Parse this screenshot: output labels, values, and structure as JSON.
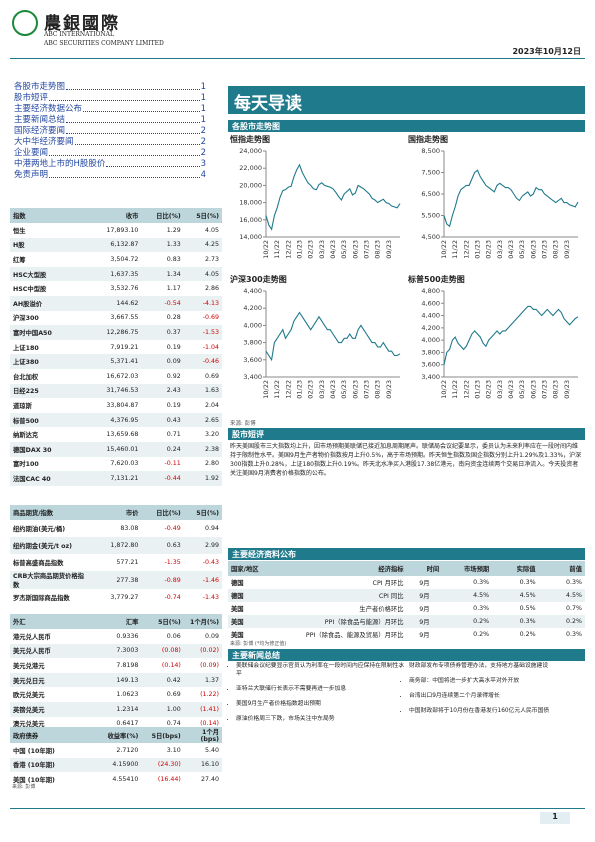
{
  "header": {
    "logo": "農銀國際",
    "company_en1": "ABC INTERNATIONAL",
    "company_en2": "ABC SECURITIES COMPANY LIMITED",
    "date": "2023年10月12日"
  },
  "toc": [
    {
      "title": "各股市走势图",
      "page": "1"
    },
    {
      "title": "股市短评",
      "page": "1"
    },
    {
      "title": "主要经济数据公布",
      "page": "1"
    },
    {
      "title": "主要新闻总结",
      "page": "1"
    },
    {
      "title": "国际经济要闻",
      "page": "2"
    },
    {
      "title": "大中华经济要闻",
      "page": "2"
    },
    {
      "title": "企业要闻",
      "page": "2"
    },
    {
      "title": "中港两地上市的H股股价",
      "page": "3"
    },
    {
      "title": "免责声明",
      "page": "4"
    }
  ],
  "title": "每天导读",
  "market_charts": {
    "heading": "各股市走势图",
    "source": "来源: 彭博",
    "charts": [
      {
        "type": "line",
        "title": "恒指走势图",
        "categories": [
          "10/22",
          null,
          null,
          null,
          "11/22",
          null,
          null,
          null,
          "12/22",
          null,
          null,
          null,
          "01/23",
          null,
          null,
          null,
          "02/23",
          null,
          null,
          null,
          "03/23",
          null,
          null,
          null,
          "04/23",
          null,
          null,
          null,
          "05/23",
          null,
          null,
          null,
          "06/23",
          null,
          null,
          null,
          "07/23",
          null,
          null,
          null,
          "08/23",
          null,
          null,
          null,
          "09/23",
          null,
          null,
          null,
          null
        ],
        "values": [
          16500,
          15400,
          14900,
          16500,
          17400,
          18600,
          19400,
          19500,
          19800,
          19900,
          21000,
          21800,
          22400,
          21500,
          20900,
          20300,
          20000,
          19600,
          19500,
          20100,
          20300,
          20000,
          19900,
          19800,
          19600,
          19200,
          18700,
          18300,
          19000,
          19300,
          19600,
          18900,
          19100,
          20000,
          19800,
          19600,
          19300,
          19000,
          18500,
          18300,
          18000,
          18200,
          18400,
          18000,
          17900,
          17600,
          17500,
          17400,
          17900
        ],
        "color": "#1f7a8c",
        "ylim": [
          14000,
          24000
        ],
        "yticks": [
          {
            "value": 14000,
            "label": "14,000"
          },
          {
            "value": 16000,
            "label": "16,000"
          },
          {
            "value": 18000,
            "label": "18,000"
          },
          {
            "value": 20000,
            "label": "20,000"
          },
          {
            "value": 22000,
            "label": "22,000"
          },
          {
            "value": 24000,
            "label": "24,000"
          }
        ]
      },
      {
        "type": "line",
        "title": "国指走势图",
        "categories": [
          "10/22",
          null,
          null,
          null,
          "11/22",
          null,
          null,
          null,
          "12/22",
          null,
          null,
          null,
          "01/23",
          null,
          null,
          null,
          "02/23",
          null,
          null,
          null,
          "03/23",
          null,
          null,
          null,
          "04/23",
          null,
          null,
          null,
          "05/23",
          null,
          null,
          null,
          "06/23",
          null,
          null,
          null,
          "07/23",
          null,
          null,
          null,
          "08/23",
          null,
          null,
          null,
          "09/23",
          null,
          null,
          null,
          null
        ],
        "values": [
          5500,
          5100,
          5000,
          5500,
          5900,
          6400,
          6700,
          6800,
          6900,
          6900,
          7200,
          7500,
          7600,
          7300,
          7100,
          6900,
          6800,
          6700,
          6600,
          6900,
          7000,
          6900,
          6800,
          6800,
          6700,
          6500,
          6300,
          6200,
          6400,
          6500,
          6600,
          6400,
          6500,
          6800,
          6700,
          6700,
          6500,
          6400,
          6300,
          6200,
          6100,
          6200,
          6300,
          6100,
          6100,
          6000,
          5950,
          5900,
          6130
        ],
        "color": "#1f7a8c",
        "ylim": [
          4500,
          8500
        ],
        "yticks": [
          {
            "value": 4500,
            "label": "4,500"
          },
          {
            "value": 5500,
            "label": "5,500"
          },
          {
            "value": 6500,
            "label": "6,500"
          },
          {
            "value": 7500,
            "label": "7,500"
          },
          {
            "value": 8500,
            "label": "8,500"
          }
        ]
      },
      {
        "type": "line",
        "title": "沪深300走势图",
        "categories": [
          "10/22",
          null,
          null,
          null,
          "11/22",
          null,
          null,
          null,
          "12/22",
          null,
          null,
          null,
          "01/23",
          null,
          null,
          null,
          "02/23",
          null,
          null,
          null,
          "03/23",
          null,
          null,
          null,
          "04/23",
          null,
          null,
          null,
          "05/23",
          null,
          null,
          null,
          "06/23",
          null,
          null,
          null,
          "07/23",
          null,
          null,
          null,
          "08/23",
          null,
          null,
          null,
          "09/23",
          null,
          null,
          null,
          null
        ],
        "values": [
          3700,
          3650,
          3600,
          3800,
          3850,
          3900,
          3950,
          3850,
          3900,
          3950,
          4050,
          4100,
          4150,
          4100,
          4050,
          4000,
          3950,
          4000,
          4050,
          4100,
          4050,
          4000,
          3950,
          3950,
          3900,
          3850,
          3800,
          3800,
          3850,
          3850,
          3900,
          3850,
          3850,
          3950,
          4000,
          3950,
          3900,
          3850,
          3800,
          3800,
          3750,
          3750,
          3800,
          3750,
          3700,
          3700,
          3650,
          3650,
          3670
        ],
        "color": "#1f7a8c",
        "ylim": [
          3400,
          4400
        ],
        "yticks": [
          {
            "value": 3400,
            "label": "3,400"
          },
          {
            "value": 3600,
            "label": "3,600"
          },
          {
            "value": 3800,
            "label": "3,800"
          },
          {
            "value": 4000,
            "label": "4,000"
          },
          {
            "value": 4200,
            "label": "4,200"
          },
          {
            "value": 4400,
            "label": "4,400"
          }
        ]
      },
      {
        "type": "line",
        "title": "标普500走势图",
        "categories": [
          "10/22",
          null,
          null,
          null,
          "11/22",
          null,
          null,
          null,
          "12/22",
          null,
          null,
          null,
          "01/23",
          null,
          null,
          null,
          "02/23",
          null,
          null,
          null,
          "03/23",
          null,
          null,
          null,
          "04/23",
          null,
          null,
          null,
          "05/23",
          null,
          null,
          null,
          "06/23",
          null,
          null,
          null,
          "07/23",
          null,
          null,
          null,
          "08/23",
          null,
          null,
          null,
          "09/23",
          null,
          null,
          null,
          null
        ],
        "values": [
          3600,
          3800,
          3850,
          4000,
          4050,
          3950,
          3900,
          3850,
          3900,
          4000,
          4100,
          4150,
          4100,
          4050,
          3950,
          3900,
          4000,
          4050,
          4100,
          4150,
          4100,
          4150,
          4150,
          4200,
          4250,
          4300,
          4350,
          4400,
          4450,
          4500,
          4550,
          4550,
          4500,
          4500,
          4450,
          4400,
          4450,
          4500,
          4450,
          4400,
          4450,
          4500,
          4450,
          4350,
          4300,
          4250,
          4300,
          4350,
          4380
        ],
        "color": "#1f7a8c",
        "ylim": [
          3400,
          4800
        ],
        "yticks": [
          {
            "value": 3400,
            "label": "3,400"
          },
          {
            "value": 3600,
            "label": "3,600"
          },
          {
            "value": 3800,
            "label": "3,800"
          },
          {
            "value": 4000,
            "label": "4,000"
          },
          {
            "value": 4200,
            "label": "4,200"
          },
          {
            "value": 4400,
            "label": "4,400"
          },
          {
            "value": 4600,
            "label": "4,600"
          },
          {
            "value": 4800,
            "label": "4,800"
          }
        ]
      }
    ]
  },
  "commentary": {
    "heading": "股市短评",
    "text": "昨天美国股市三大指数均上升，因市场预期美联储已接近加息周期尾声。联储局会议纪要显示，委员认为未来利率应在一段时间内维持于限制性水平。美国9月生产者物价指数按月上升0.5%，高于市场预期。昨天恒生指数及国企指数分别上升1.29%及1.33%，沪深300指数上升0.28%，上证180指数上升0.19%。昨天北水净买入港股17.38亿港元，南向资金连续两个交易日净流入。今天投资者关注美国9月消费者价格指数的公布。"
  },
  "index_table": {
    "columns": [
      "指数",
      "收市",
      "日比(%)",
      "5日(%)"
    ],
    "rows": [
      [
        "恒生",
        "17,893.10",
        "1.29",
        "4.05"
      ],
      [
        "H股",
        "6,132.87",
        "1.33",
        "4.25"
      ],
      [
        "红筹",
        "3,504.72",
        "0.83",
        "2.73"
      ],
      [
        "HSC大型股",
        "1,637.35",
        "1.34",
        "4.05"
      ],
      [
        "HSC中型股",
        "3,532.76",
        "1.17",
        "2.86"
      ],
      [
        "AH股溢价",
        "144.62",
        "-0.54",
        "-4.13"
      ],
      [
        "沪深300",
        "3,667.55",
        "0.28",
        "-0.69"
      ],
      [
        "富时中国A50",
        "12,286.75",
        "0.37",
        "-1.53"
      ],
      [
        "上证180",
        "7,919.21",
        "0.19",
        "-1.04"
      ],
      [
        "上证380",
        "5,371.41",
        "0.09",
        "-0.46"
      ],
      [
        "台北加权",
        "16,672.03",
        "0.92",
        "0.69"
      ],
      [
        "日经225",
        "31,746.53",
        "2.43",
        "1.63"
      ],
      [
        "道琼斯",
        "33,804.87",
        "0.19",
        "2.04"
      ],
      [
        "标普500",
        "4,376.95",
        "0.43",
        "2.65"
      ],
      [
        "纳斯达克",
        "13,659.68",
        "0.71",
        "3.20"
      ],
      [
        "德国DAX 30",
        "15,460.01",
        "0.24",
        "2.38"
      ],
      [
        "富时100",
        "7,620.03",
        "-0.11",
        "2.80"
      ],
      [
        "法国CAC 40",
        "7,131.21",
        "-0.44",
        "1.92"
      ]
    ]
  },
  "commodity_table": {
    "columns": [
      "商品期货/指数",
      "市价",
      "日比(%)",
      "5日(%)"
    ],
    "rows": [
      [
        "纽约期油(美元/桶)",
        "83.08",
        "-0.49",
        "0.94"
      ],
      [
        "纽约期金(美元/t oz)",
        "1,872.80",
        "0.63",
        "2.99"
      ],
      [
        "标普高盛商品指数",
        "577.21",
        "-1.35",
        "-0.43"
      ],
      [
        "CRB大宗商品期货价格指数",
        "277.38",
        "-0.89",
        "-1.46"
      ],
      [
        "罗杰斯国际商品指数",
        "3,779.27",
        "-0.74",
        "-1.43"
      ]
    ]
  },
  "fx_table": {
    "columns": [
      "外汇",
      "汇率",
      "5日(%)",
      "1个月(%)"
    ],
    "rows": [
      [
        "港元兑人民币",
        "0.9336",
        "0.06",
        "0.09"
      ],
      [
        "美元兑人民币",
        "7.3003",
        "(0.08)",
        "(0.02)"
      ],
      [
        "美元兑港元",
        "7.8198",
        "(0.14)",
        "(0.09)"
      ],
      [
        "美元兑日元",
        "149.13",
        "0.42",
        "1.37"
      ],
      [
        "欧元兑美元",
        "1.0623",
        "0.69",
        "(1.22)"
      ],
      [
        "英镑兑美元",
        "1.2314",
        "1.00",
        "(1.41)"
      ],
      [
        "澳元兑美元",
        "0.6417",
        "0.74",
        "(0.14)"
      ]
    ]
  },
  "bond_table": {
    "columns": [
      "政府债券",
      "收益率(%)",
      "5日(bps)",
      "1个月(bps)"
    ],
    "rows": [
      [
        "中国 (10年期)",
        "2.7120",
        "3.10",
        "5.40"
      ],
      [
        "香港 (10年期)",
        "4.15900",
        "(24.30)",
        "16.10"
      ],
      [
        "美国 (10年期)",
        "4.55410",
        "(16.44)",
        "27.40"
      ]
    ],
    "source": "来源: 彭博"
  },
  "econ": {
    "heading": "主要经济资料公布",
    "columns": [
      "国家/地区",
      "经济指标",
      "时间",
      "市场预期",
      "实际值",
      "前值"
    ],
    "rows": [
      [
        "德国",
        "CPI 月环比",
        "9月",
        "0.3%",
        "0.3%",
        "0.3%"
      ],
      [
        "德国",
        "CPI 同比",
        "9月",
        "4.5%",
        "4.5%",
        "4.5%"
      ],
      [
        "美国",
        "生产者价格环比",
        "9月",
        "0.3%",
        "0.5%",
        "0.7%"
      ],
      [
        "美国",
        "PPI（除食品与能源）月环比",
        "9月",
        "0.2%",
        "0.3%",
        "0.2%"
      ],
      [
        "美国",
        "PPI（除食品、能源及贸易）月环比",
        "9月",
        "0.2%",
        "0.2%",
        "0.3%"
      ]
    ],
    "note": "来源: 彭博 (*均为修正值)"
  },
  "news": {
    "heading": "主要新闻总结",
    "left": [
      "美联储会议纪要显示官员认为利率在一段时间内应保持在限制性水平",
      "亚特兰大联储行长表示不需要再进一步加息",
      "美国9月生产者价格指数超出预期",
      "原油价格周三下跌，市场关注中东局势"
    ],
    "right": [
      "财政部发布专项债券管理办法，支持地方基础设施建设",
      "商务部：中国将进一步扩大高水平对外开放",
      "台湾出口9月连续第二个月录得增长",
      "中国财政部将于10月份在香港发行160亿元人民币国债"
    ]
  },
  "page_number": "1"
}
